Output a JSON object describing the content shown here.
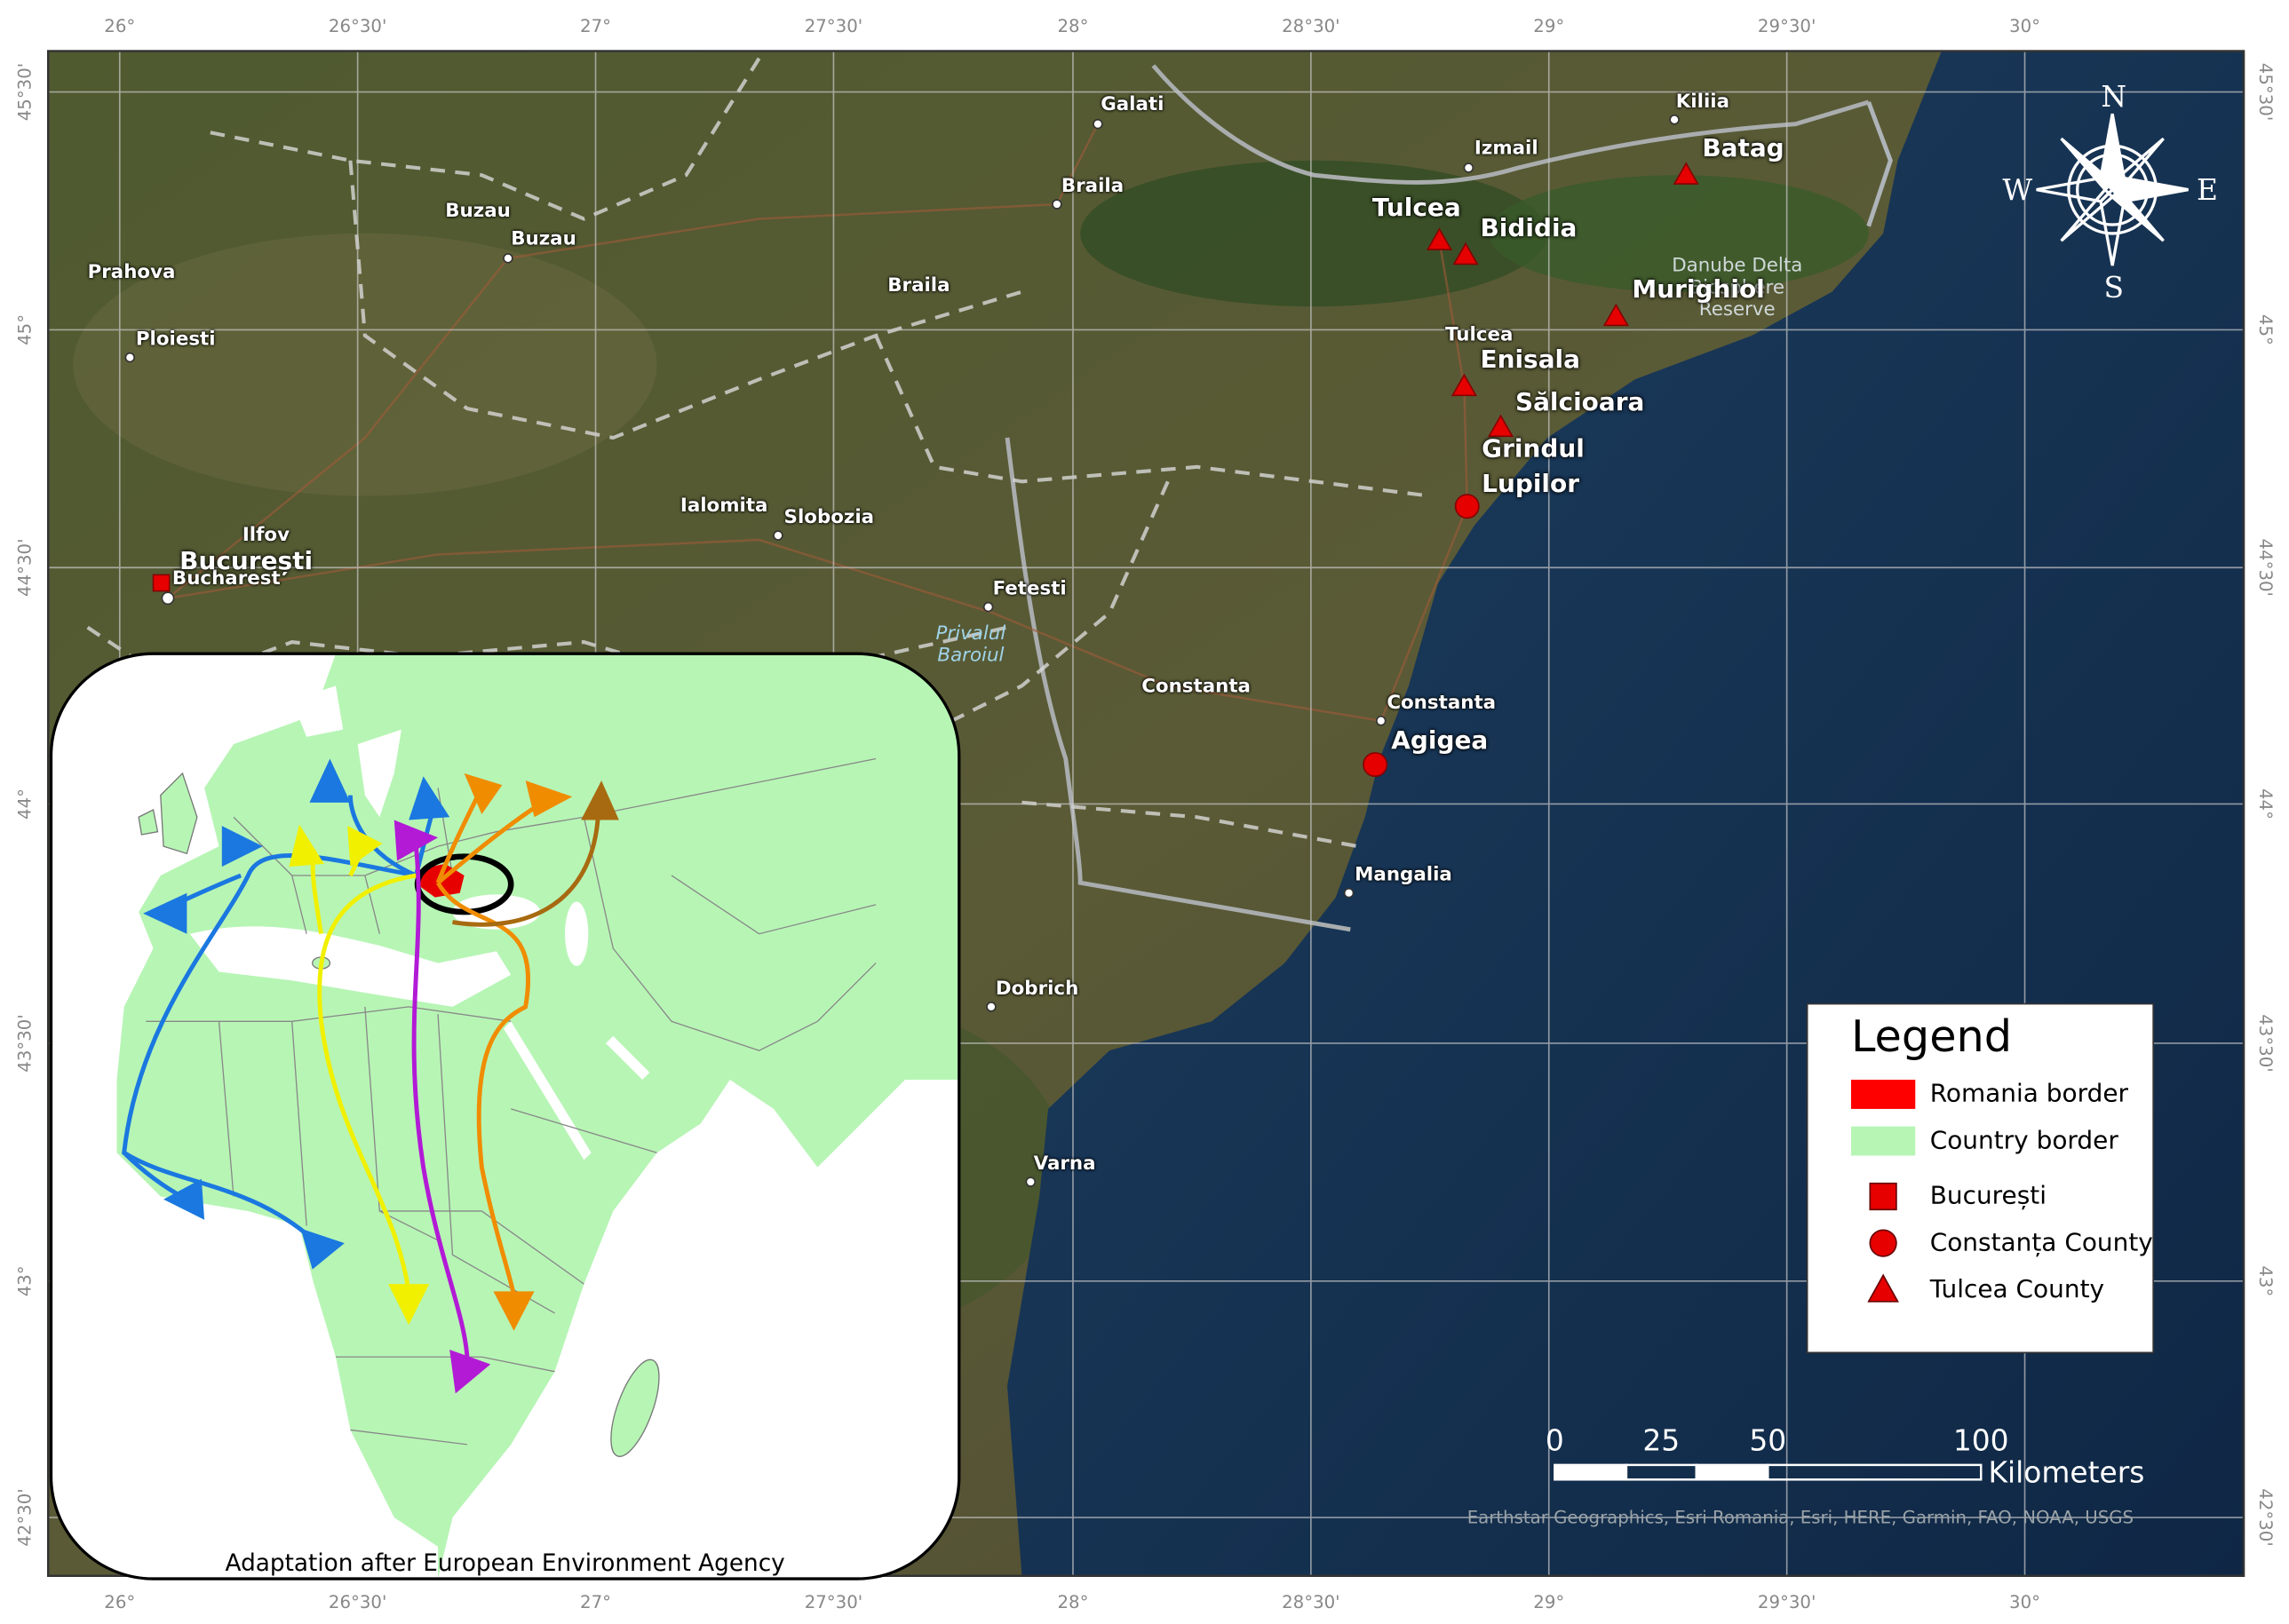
{
  "map": {
    "lon_labels": [
      "26°",
      "26°30'",
      "27°",
      "27°30'",
      "28°",
      "28°30'",
      "29°",
      "29°30'",
      "30°"
    ],
    "lat_labels": [
      "45°30'",
      "45°",
      "44°30'",
      "44°",
      "43°30'",
      "43°",
      "42°30'"
    ],
    "places": [
      "Galati",
      "Kiliia",
      "Izmail",
      "Braila",
      "Buzau",
      "Buzau",
      "Prahova",
      "Braila",
      "Ploiesti",
      "Tulcea",
      "Ialomita",
      "Slobozia",
      "Ilfov",
      "Bucharest",
      "Fetesti",
      "Constanta",
      "Constanta",
      "Mangalia",
      "Dobrich",
      "Varna"
    ],
    "reserves": [
      "Danube Delta Biosphere Reserve",
      "Privalul Baroiul"
    ],
    "sites": [
      "București",
      "Tulcea",
      "Bididia",
      "Batag",
      "Murighiol",
      "Enisala",
      "Sălcioara",
      "Grindul Lupilor",
      "Agigea"
    ],
    "compass": [
      "N",
      "E",
      "S",
      "W"
    ],
    "legend": {
      "title": "Legend",
      "items": [
        "Romania border",
        "Country border",
        "București",
        "Constanța County",
        "Tulcea County"
      ]
    },
    "scale_bar": {
      "labels": [
        "0",
        "25",
        "50",
        "100"
      ],
      "unit": "Kilometers"
    },
    "attribution": "Earthstar Geographics, Esri Romania, Esri, HERE, Garmin, FAO, NOAA, USGS",
    "inset_caption": "Adaptation after European Environment Agency"
  }
}
